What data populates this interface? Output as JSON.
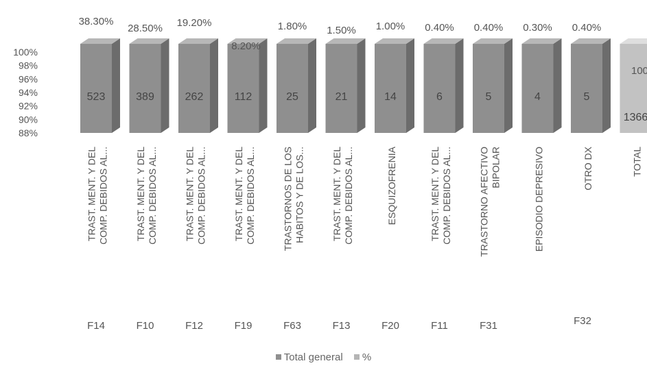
{
  "chart_data": {
    "type": "bar",
    "title": "",
    "categories": [
      {
        "code": "F14",
        "label": [
          "TRAST. MENT. Y DEL",
          "COMP. DEBIDOS AL..."
        ]
      },
      {
        "code": "F10",
        "label": [
          "TRAST. MENT. Y DEL",
          "COMP. DEBIDOS AL..."
        ]
      },
      {
        "code": "F12",
        "label": [
          "TRAST. MENT. Y DEL",
          "COMP. DEBIDOS AL..."
        ]
      },
      {
        "code": "F19",
        "label": [
          "TRAST. MENT. Y DEL",
          "COMP. DEBIDOS AL..."
        ]
      },
      {
        "code": "F63",
        "label": [
          "TRASTORNOS DE LOS",
          "HABITOS Y DE LOS..."
        ]
      },
      {
        "code": "F13",
        "label": [
          "TRAST. MENT. Y DEL",
          "COMP. DEBIDOS AL..."
        ]
      },
      {
        "code": "F20",
        "label": [
          "ESQUIZOFRENIA"
        ]
      },
      {
        "code": "F11",
        "label": [
          "TRAST. MENT. Y DEL",
          "COMP. DEBIDOS AL..."
        ]
      },
      {
        "code": "F31",
        "label": [
          "TRASTORNO AFECTIVO",
          "BIPOLAR"
        ]
      },
      {
        "code": "",
        "label": [
          "EPISODIO DEPRESIVO"
        ]
      },
      {
        "code": "F32",
        "label": [
          "OTRO DX"
        ]
      },
      {
        "code": "",
        "label": [
          "TOTAL"
        ]
      }
    ],
    "series": [
      {
        "name": "Total general",
        "values": [
          523,
          389,
          262,
          112,
          25,
          21,
          14,
          6,
          5,
          4,
          5,
          1366
        ]
      },
      {
        "name": "%",
        "values": [
          "38.30%",
          "28.50%",
          "19.20%",
          "8.20%",
          "1.80%",
          "1.50%",
          "1.00%",
          "0.40%",
          "0.40%",
          "0.30%",
          "0.40%",
          "100"
        ]
      }
    ],
    "y_axis": {
      "ticks": [
        "100%",
        "98%",
        "96%",
        "94%",
        "92%",
        "90%",
        "88%"
      ],
      "min": 0.88,
      "max": 1.0
    },
    "colors": {
      "bar_front": "#8f8f8f",
      "bar_side": "#6c6c6c",
      "bar_top": "#b7b7b7",
      "total_front": "#c2c2c2",
      "total_side": "#a9a9a9",
      "total_top": "#dedede",
      "text": "#555555"
    },
    "legend": {
      "position": "bottom",
      "items": [
        {
          "label": "Total general",
          "color": "#8f8f8f"
        },
        {
          "label": "%",
          "color": "#b5b5b5"
        }
      ]
    }
  }
}
